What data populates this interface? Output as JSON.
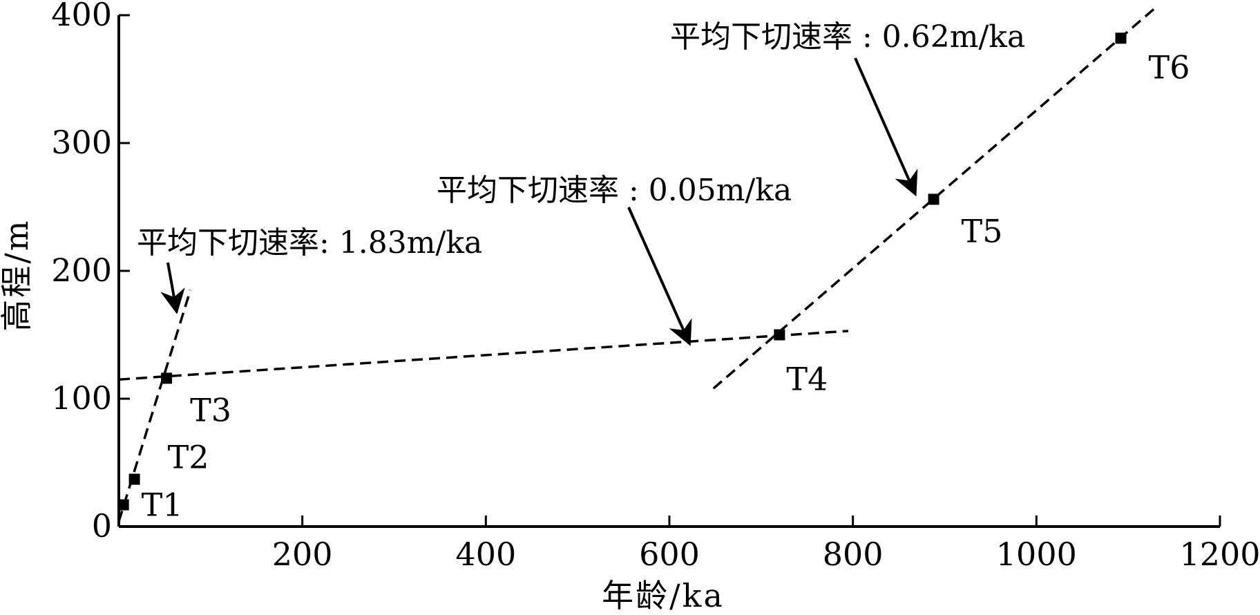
{
  "chart_data": {
    "type": "scatter",
    "xlabel": "年龄/ka",
    "ylabel": "高程/m",
    "xlim": [
      0,
      1200
    ],
    "ylim": [
      0,
      400
    ],
    "x_ticks": [
      {
        "value": 200,
        "label": "200"
      },
      {
        "value": 400,
        "label": "400"
      },
      {
        "value": 600,
        "label": "600"
      },
      {
        "value": 800,
        "label": "800"
      },
      {
        "value": 1000,
        "label": "1000"
      },
      {
        "value": 1200,
        "label": "1200"
      }
    ],
    "y_ticks": [
      {
        "value": 0,
        "label": "0"
      },
      {
        "value": 100,
        "label": "100"
      },
      {
        "value": 200,
        "label": "200"
      },
      {
        "value": 300,
        "label": "300"
      },
      {
        "value": 400,
        "label": "400"
      }
    ],
    "points": [
      {
        "label": "T1",
        "x": 5,
        "y": 17
      },
      {
        "label": "T2",
        "x": 17,
        "y": 37
      },
      {
        "label": "T3",
        "x": 52,
        "y": 116
      },
      {
        "label": "T4",
        "x": 720,
        "y": 150
      },
      {
        "label": "T5",
        "x": 888,
        "y": 256
      },
      {
        "label": "T6",
        "x": 1092,
        "y": 382
      }
    ],
    "trend_lines": [
      {
        "from": [
          0,
          4
        ],
        "to": [
          78,
          185
        ]
      },
      {
        "from": [
          0,
          115
        ],
        "to": [
          795,
          153
        ]
      },
      {
        "from": [
          648,
          108
        ],
        "to": [
          1130,
          406
        ]
      }
    ],
    "annotations": [
      {
        "text": "平均下切速率: 1.83m/ka",
        "arrow_to": [
          63,
          168
        ]
      },
      {
        "text": "平均下切速率 : 0.05m/ka",
        "arrow_to": [
          622,
          143
        ]
      },
      {
        "text": "平均下切速率 : 0.62m/ka",
        "arrow_to": [
          868,
          260
        ]
      }
    ]
  }
}
